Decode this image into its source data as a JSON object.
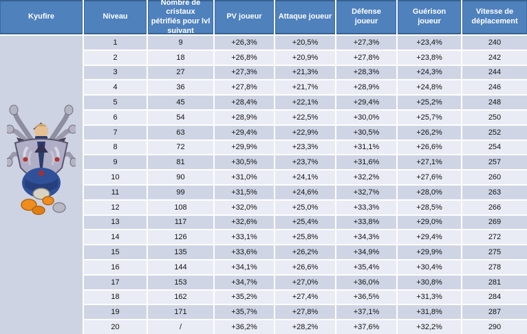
{
  "title": "Kyufire stats table",
  "creature": {
    "name": "Kyufire",
    "sprite": "kyufire-creature-sprite"
  },
  "colors": {
    "header_bg": "#4f81bd",
    "header_border": "#36618f",
    "header_text": "#ffffff",
    "row_odd": "#cfd5e5",
    "row_even": "#e9ecf5",
    "left_cell_bg": "#cdd3e3",
    "gap": "#ffffff",
    "data_text": "#111111"
  },
  "header": {
    "labels": [
      "Kyufire",
      "Niveau",
      "Nombre de cristaux pétrifiés pour lvl suivant",
      "PV joueur",
      "Attaque joueur",
      "Défense joueur",
      "Guérison joueur",
      "Vitesse de déplacement"
    ]
  },
  "chart_data": {
    "type": "table",
    "title": "Kyufire",
    "columns": [
      "Niveau",
      "Nombre de cristaux pétrifiés pour lvl suivant",
      "PV joueur",
      "Attaque joueur",
      "Défense joueur",
      "Guérison joueur",
      "Vitesse de déplacement"
    ]
  },
  "rows": [
    [
      "1",
      "9",
      "+26,3%",
      "+20,5%",
      "+27,3%",
      "+23,4%",
      "240"
    ],
    [
      "2",
      "18",
      "+26,8%",
      "+20,9%",
      "+27,8%",
      "+23,8%",
      "242"
    ],
    [
      "3",
      "27",
      "+27,3%",
      "+21,3%",
      "+28,3%",
      "+24,3%",
      "244"
    ],
    [
      "4",
      "36",
      "+27,8%",
      "+21,7%",
      "+28,9%",
      "+24,8%",
      "246"
    ],
    [
      "5",
      "45",
      "+28,4%",
      "+22,1%",
      "+29,4%",
      "+25,2%",
      "248"
    ],
    [
      "6",
      "54",
      "+28,9%",
      "+22,5%",
      "+30,0%",
      "+25,7%",
      "250"
    ],
    [
      "7",
      "63",
      "+29,4%",
      "+22,9%",
      "+30,5%",
      "+26,2%",
      "252"
    ],
    [
      "8",
      "72",
      "+29,9%",
      "+23,3%",
      "+31,1%",
      "+26,6%",
      "254"
    ],
    [
      "9",
      "81",
      "+30,5%",
      "+23,7%",
      "+31,6%",
      "+27,1%",
      "257"
    ],
    [
      "10",
      "90",
      "+31,0%",
      "+24,1%",
      "+32,2%",
      "+27,6%",
      "260"
    ],
    [
      "11",
      "99",
      "+31,5%",
      "+24,6%",
      "+32,7%",
      "+28,0%",
      "263"
    ],
    [
      "12",
      "108",
      "+32,0%",
      "+25,0%",
      "+33,3%",
      "+28,5%",
      "266"
    ],
    [
      "13",
      "117",
      "+32,6%",
      "+25,4%",
      "+33,8%",
      "+29,0%",
      "269"
    ],
    [
      "14",
      "126",
      "+33,1%",
      "+25,8%",
      "+34,3%",
      "+29,4%",
      "272"
    ],
    [
      "15",
      "135",
      "+33,6%",
      "+26,2%",
      "+34,9%",
      "+29,9%",
      "275"
    ],
    [
      "16",
      "144",
      "+34,1%",
      "+26,6%",
      "+35,4%",
      "+30,4%",
      "278"
    ],
    [
      "17",
      "153",
      "+34,7%",
      "+27,0%",
      "+36,0%",
      "+30,8%",
      "281"
    ],
    [
      "18",
      "162",
      "+35,2%",
      "+27,4%",
      "+36,5%",
      "+31,3%",
      "284"
    ],
    [
      "19",
      "171",
      "+35,7%",
      "+27,8%",
      "+37,1%",
      "+31,8%",
      "287"
    ],
    [
      "20",
      "/",
      "+36,2%",
      "+28,2%",
      "+37,6%",
      "+32,2%",
      "290"
    ]
  ]
}
